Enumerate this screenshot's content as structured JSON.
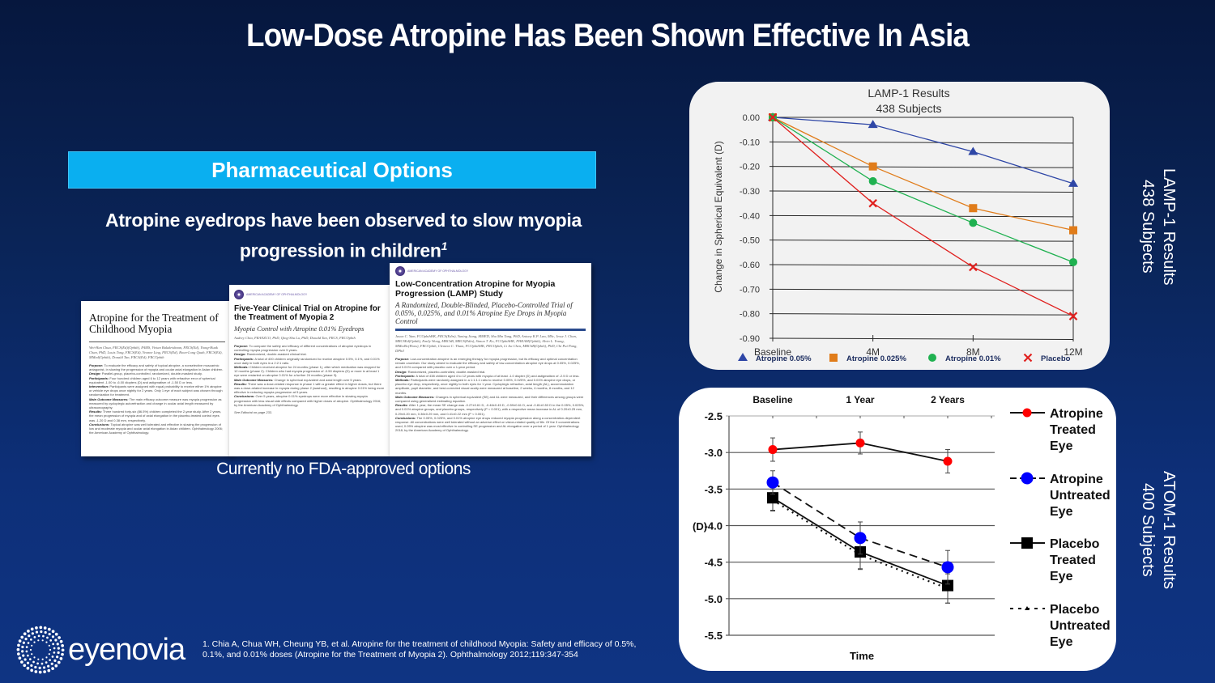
{
  "slide": {
    "title": "Low-Dose Atropine Has Been Shown Effective In Asia",
    "banner": "Pharmaceutical Options",
    "lead_line1": "Atropine eyedrops have been observed to slow myopia",
    "lead_line2": "progression in children",
    "lead_sup": "1",
    "no_fda": "Currently no FDA-approved options",
    "logo_text": "eyenovia",
    "footnote": "1. Chia A, Chua WH, Cheung YB, et al. Atropine for the treatment of childhood Myopia: Safety and efficacy of 0.5%, 0.1%, and 0.01% doses (Atropine for the Treatment of Myopia 2). Ophthalmology 2012;119:347-354",
    "side_labels": {
      "lamp_line1": "LAMP-1 Results",
      "lamp_line2": "438 Subjects",
      "atom_line1": "ATOM-1 Results",
      "atom_line2": "400 Subjects"
    }
  },
  "papers": [
    {
      "title": "Atropine for the Treatment of Childhood Myopia",
      "authors": "Wei-Han Chua, FRCS(Ed)(Ophth), FAMS, Vivian Balakrishnan, FRCS(Ed), Yiong-Huak Chan, PhD, Louis Tong, FRCS(Ed), Yvonne Ling, FRCS(Ed), Boon-Long Quah, FRCS(Ed), MMed(Ophth), Donald Tan, FRCS(Ed), FRCOphth",
      "body": [
        {
          "label": "Purpose:",
          "text": "To evaluate the efficacy and safety of topical atropine, a nonselective muscarinic antagonist, in slowing the progression of myopia and ocular axial elongation in Asian children."
        },
        {
          "label": "Design:",
          "text": "Parallel-group, placebo-controlled, randomized, double-masked study."
        },
        {
          "label": "Participants:",
          "text": "Four hundred children aged 6 to 12 years with refractive error of spherical equivalent -1.00 to -6.00 diopters (D) and astigmatism of -1.50 D or less."
        },
        {
          "label": "Intervention:",
          "text": "Participants were assigned with equal probability to receive either 1% atropine or vehicle eye drops once nightly for 2 years. Only 1 eye of each subject was chosen through randomization for treatment."
        },
        {
          "label": "Main Outcome Measures:",
          "text": "The main efficacy outcome measure was myopia progression as measured by cycloplegic autorefraction and change in ocular axial length measured by ultrasonography."
        },
        {
          "label": "Results:",
          "text": "Three hundred forty-six (86.5%) children completed the 2-year study. After 2 years, the mean progression of myopia and of axial elongation in the placebo-treated control eyes was -1.20 D and 0.38 mm, respectively."
        },
        {
          "label": "Conclusions:",
          "text": "Topical atropine was well tolerated and effective in slowing the progression of low and moderate myopia and ocular axial elongation in Asian children. Ophthalmology 2006; the American Academy of Ophthalmology."
        }
      ]
    },
    {
      "org": "AMERICAN ACADEMY OF OPHTHALMOLOGY",
      "title": "Five-Year Clinical Trial on Atropine for the Treatment of Myopia 2",
      "subtitle": "Myopia Control with Atropine 0.01% Eyedrops",
      "authors": "Audrey Chia, FRANZCO, PhD, Qing-Shu Lu, PhD, Donald Tan, FRCS, FRCOphth",
      "body": [
        {
          "label": "Purpose:",
          "text": "To compare the safety and efficacy of different concentrations of atropine eyedrops in controlling myopia progression over 5 years."
        },
        {
          "label": "Design:",
          "text": "Randomized, double-masked clinical trial."
        },
        {
          "label": "Participants:",
          "text": "A total of 400 children originally randomized to receive atropine 0.5%, 0.1%, and 0.01% once daily in both eyes in a 2:2:1 ratio."
        },
        {
          "label": "Methods:",
          "text": "Children received atropine for 24 months (phase 1), after which medication was stopped for 12 months (phase 2). Children who had myopia progression of -0.50 diopters (D) or more in at least 1 eye were restarted on atropine 0.01% for a further 24 months (phase 3)."
        },
        {
          "label": "Main Outcome Measures:",
          "text": "Change in spherical equivalent and axial length over 5 years."
        },
        {
          "label": "Results:",
          "text": "There was a dose-related response in phase 1 with a greater effect in higher doses, but there was a dose-related increase in myopia during phase 2 (washout), resulting in atropine 0.01% being more effective in reducing myopia progression at 5 years."
        },
        {
          "label": "Conclusions:",
          "text": "Over 5 years, atropine 0.01% eyedrops were more effective in slowing myopia progression with less visual side effects compared with higher doses of atropine. Ophthalmology 2016; by the American Academy of Ophthalmology."
        }
      ],
      "note": "See Editorial on page 233."
    },
    {
      "org": "AMERICAN ACADEMY OF OPHTHALMOLOGY",
      "title": "Low-Concentration Atropine for Myopia Progression (LAMP) Study",
      "subtitle": "A Randomized, Double-Blinded, Placebo-Controlled Trial of 0.05%, 0.025%, and 0.01% Atropine Eye Drops in Myopia Control",
      "authors": "Jason C. Yam, FCOphthHK, FRCS(Edin), Yuning Jiang, MMED, Shu Min Tang, PhD, Antony K.P. Law, MSc, Jesse J. Chan, MRCSEd(Ophth), Emily Wong, MBChB, MRCS(Edin), Simon T. Ko, FCOphthHK, FHKAM(Ophth), Alvin L. Young, MMedSc(Hons), FRCOphth, Clement C. Tham, FCOphthHK, FRCOphth, Li Jia Chen, MBChB(Ophth), PhD, Chi Pui Pang, DPhil",
      "body": [
        {
          "label": "Purpose:",
          "text": "Low-concentration atropine is an emerging therapy for myopia progression, but its efficacy and optimal concentration remain uncertain. Our study aimed to evaluate the efficacy and safety of low-concentration atropine eye drops at 0.05%, 0.025%, and 0.01% compared with placebo over a 1-year period."
        },
        {
          "label": "Design:",
          "text": "Randomized, placebo-controlled, double-masked trial."
        },
        {
          "label": "Participants:",
          "text": "A total of 438 children aged 4 to 12 years with myopia of at least -1.0 diopter (D) and astigmatism of -2.5 D or less."
        },
        {
          "label": "Methods:",
          "text": "Participants were randomly assigned in a 1:1:1:1 ratio to receive 0.05%, 0.025%, and 0.01% atropine eye drops, or placebo eye drop, respectively, once nightly to both eyes for 1 year. Cycloplegic refraction, axial length (AL), accommodation amplitude, pupil diameter, and best-corrected visual acuity were measured at baseline, 2 weeks, 4 months, 8 months, and 12 months."
        },
        {
          "label": "Main Outcome Measures:",
          "text": "Changes in spherical equivalent (SE) and AL were measured, and their differences among groups were compared using generalized estimating equation."
        },
        {
          "label": "Results:",
          "text": "After 1 year, the mean SE change was -0.27±0.61 D, -0.46±0.45 D, -0.59±0.61 D, and -0.81±0.53 D in the 0.05%, 0.025%, and 0.01% atropine groups, and placebo groups, respectively (P < 0.001), with a respective mean increase in AL of 0.20±0.25 mm, 0.29±0.20 mm, 0.36±0.29 mm, and 0.41±0.22 mm (P < 0.001)."
        },
        {
          "label": "Conclusions:",
          "text": "The 0.05%, 0.025%, and 0.01% atropine eye drops reduced myopia progression along a concentration-dependent response. All concentrations were well tolerated without an adverse effect on vision-related quality of life. Of the 3 concentrations used, 0.05% atropine was most effective in controlling SE progression and AL elongation over a period of 1 year. Ophthalmology 2018; by the American Academy of Ophthalmology."
        }
      ]
    }
  ],
  "chart_data": [
    {
      "type": "line",
      "title": "LAMP-1 Results",
      "subtitle": "438 Subjects",
      "xlabel": "",
      "ylabel": "Change in Spherical Equivalent (D)",
      "categories": [
        "Baseline",
        "4M",
        "8M",
        "12M"
      ],
      "ylim": [
        -0.9,
        0.0
      ],
      "yticks": [
        "0.00",
        "-0.10",
        "-0.20",
        "-0.30",
        "-0.40",
        "-0.50",
        "-0.60",
        "-0.70",
        "-0.80",
        "-0.90"
      ],
      "ytick_values": [
        0,
        -0.1,
        -0.2,
        -0.3,
        -0.4,
        -0.5,
        -0.6,
        -0.7,
        -0.8,
        -0.9
      ],
      "grid": true,
      "legend_position": "bottom",
      "series": [
        {
          "name": "Atropine 0.05%",
          "marker": "triangle",
          "color": "#2e46a6",
          "values": [
            0.0,
            -0.03,
            -0.14,
            -0.27
          ]
        },
        {
          "name": "Atropine 0.025%",
          "marker": "square",
          "color": "#e07c1a",
          "values": [
            0.0,
            -0.2,
            -0.37,
            -0.46
          ]
        },
        {
          "name": "Atropine 0.01%",
          "marker": "circle",
          "color": "#1fb150",
          "values": [
            0.0,
            -0.26,
            -0.43,
            -0.59
          ]
        },
        {
          "name": "Placebo",
          "marker": "x",
          "color": "#e0201e",
          "values": [
            0.0,
            -0.35,
            -0.61,
            -0.81
          ]
        }
      ]
    },
    {
      "type": "line",
      "title": "ATOM-1 Results",
      "subtitle": "400 Subjects",
      "xlabel": "Time",
      "ylabel": "(D)",
      "categories": [
        "Baseline",
        "1 Year",
        "2 Years"
      ],
      "ylim": [
        -5.5,
        -2.5
      ],
      "yticks": [
        "-2.5",
        "-3.0",
        "-3.5",
        "-4.0",
        "-4.5",
        "-5.0",
        "-5.5"
      ],
      "ytick_values": [
        -2.5,
        -3.0,
        -3.5,
        -4.0,
        -4.5,
        -5.0,
        -5.5
      ],
      "grid": true,
      "legend_position": "right",
      "series": [
        {
          "name": "Atropine Treated Eye",
          "legend_lines": [
            "Atropine",
            "Treated",
            "Eye"
          ],
          "marker": "circle-small",
          "color": "#ff0000",
          "line": "solid",
          "values": [
            -2.96,
            -2.87,
            -3.12
          ],
          "error": [
            0.16,
            0.15,
            0.16
          ]
        },
        {
          "name": "Atropine Untreated Eye",
          "legend_lines": [
            "Atropine",
            "Untreated",
            "Eye"
          ],
          "marker": "circle",
          "color": "#0000ff",
          "line": "dashed",
          "values": [
            -3.41,
            -4.17,
            -4.57
          ],
          "error": [
            0.16,
            0.22,
            0.23
          ]
        },
        {
          "name": "Placebo Treated Eye",
          "legend_lines": [
            "Placebo",
            "Treated",
            "Eye"
          ],
          "marker": "square",
          "color": "#000000",
          "line": "solid",
          "values": [
            -3.62,
            -4.36,
            -4.82
          ],
          "error": [
            0.17,
            0.23,
            0.24
          ]
        },
        {
          "name": "Placebo Untreated Eye",
          "legend_lines": [
            "Placebo",
            "Untreated",
            "Eye"
          ],
          "marker": "triangle-small",
          "color": "#000000",
          "line": "dotted",
          "values": [
            -3.65,
            -4.4,
            -4.86
          ],
          "error": [
            0.15,
            0.2,
            0.2
          ]
        }
      ]
    }
  ]
}
